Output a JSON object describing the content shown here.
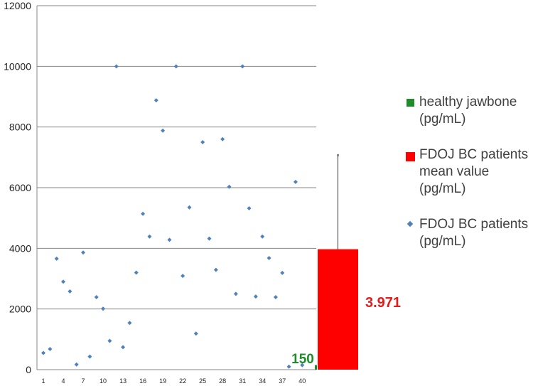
{
  "chart_data": {
    "type": "scatter",
    "y_ticks": [
      "0",
      "2000",
      "4000",
      "6000",
      "8000",
      "10000",
      "12000"
    ],
    "ylim": [
      0,
      12000
    ],
    "x_ticks": [
      "1",
      "4",
      "7",
      "10",
      "13",
      "16",
      "19",
      "22",
      "25",
      "28",
      "31",
      "34",
      "37",
      "40"
    ],
    "xlim": [
      1,
      42
    ],
    "grid": true,
    "series": [
      {
        "name": "FDOJ BC patients (pg/mL)",
        "marker": "diamond",
        "color": "#4f81bd",
        "points": [
          [
            1,
            550
          ],
          [
            2,
            680
          ],
          [
            3,
            3660
          ],
          [
            4,
            2900
          ],
          [
            5,
            2580
          ],
          [
            6,
            170
          ],
          [
            7,
            3860
          ],
          [
            8,
            430
          ],
          [
            9,
            2390
          ],
          [
            10,
            2010
          ],
          [
            11,
            950
          ],
          [
            12,
            10000
          ],
          [
            13,
            740
          ],
          [
            14,
            1540
          ],
          [
            15,
            3200
          ],
          [
            16,
            5140
          ],
          [
            17,
            4390
          ],
          [
            18,
            8880
          ],
          [
            19,
            7880
          ],
          [
            20,
            4280
          ],
          [
            21,
            10000
          ],
          [
            22,
            3090
          ],
          [
            23,
            5350
          ],
          [
            24,
            1190
          ],
          [
            25,
            7500
          ],
          [
            26,
            4320
          ],
          [
            27,
            3290
          ],
          [
            28,
            7600
          ],
          [
            29,
            6030
          ],
          [
            30,
            2500
          ],
          [
            31,
            10000
          ],
          [
            32,
            5320
          ],
          [
            33,
            2410
          ],
          [
            34,
            4390
          ],
          [
            35,
            3680
          ],
          [
            36,
            2390
          ],
          [
            37,
            3190
          ],
          [
            38,
            100
          ],
          [
            39,
            6190
          ],
          [
            40,
            150
          ]
        ]
      },
      {
        "name": "healthy jawbone (pg/mL)",
        "type": "bar",
        "color": "#1e8c2a",
        "value": 150,
        "label": "150"
      },
      {
        "name": "FDOJ BC patients mean value (pg/mL)",
        "type": "bar",
        "color": "#ff0000",
        "value": 3971,
        "label": "3.971",
        "error_bar_top": 7070
      }
    ]
  },
  "legend": [
    {
      "label": "healthy jawbone (pg/mL)",
      "marker": "green-square",
      "color": "#1e8c2a"
    },
    {
      "label": "FDOJ BC patients mean value (pg/mL)",
      "marker": "red-square",
      "color": "#ff0000"
    },
    {
      "label": "FDOJ BC patients (pg/mL)",
      "marker": "blue-diamond",
      "color": "#4f81bd"
    }
  ]
}
